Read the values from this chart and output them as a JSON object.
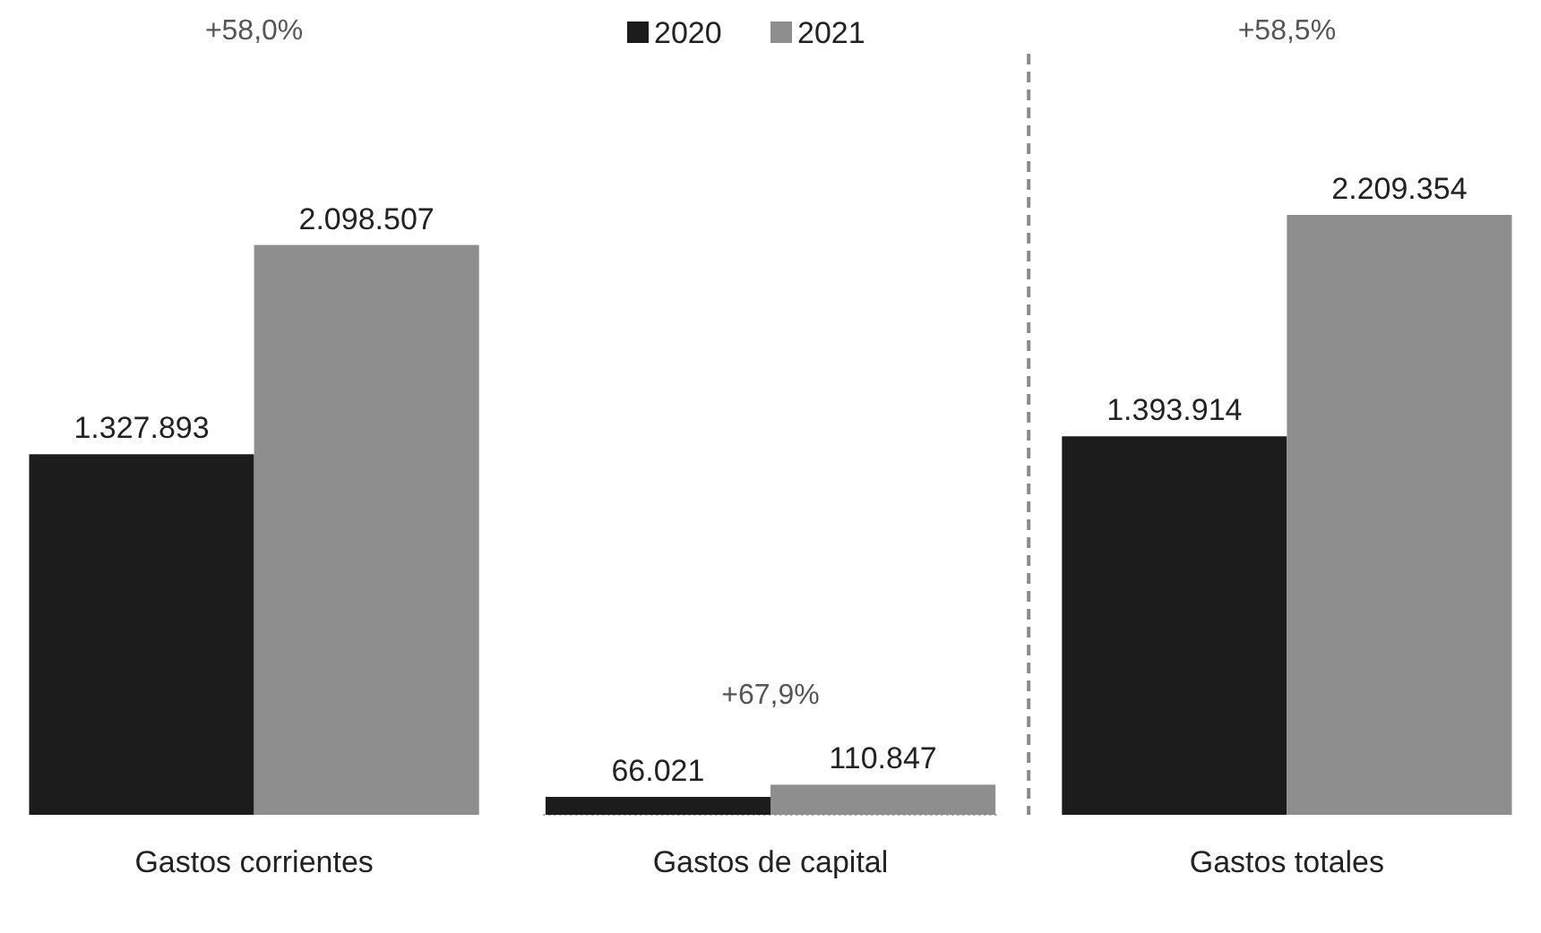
{
  "chart_data": {
    "type": "bar",
    "categories": [
      "Gastos corrientes",
      "Gastos de capital",
      "Gastos totales"
    ],
    "series": [
      {
        "name": "2020",
        "color": "#1c1c1c",
        "values": [
          1327893,
          66021,
          1393914
        ],
        "value_labels": [
          "1.327.893",
          "66.021",
          "1.393.914"
        ]
      },
      {
        "name": "2021",
        "color": "#8e8e8e",
        "values": [
          2098507,
          110847,
          2209354
        ],
        "value_labels": [
          "2.098.507",
          "110.847",
          "2.209.354"
        ]
      }
    ],
    "annotations": [
      "+58,0%",
      "+67,9%",
      "+58,5%"
    ],
    "legend": "top"
  }
}
